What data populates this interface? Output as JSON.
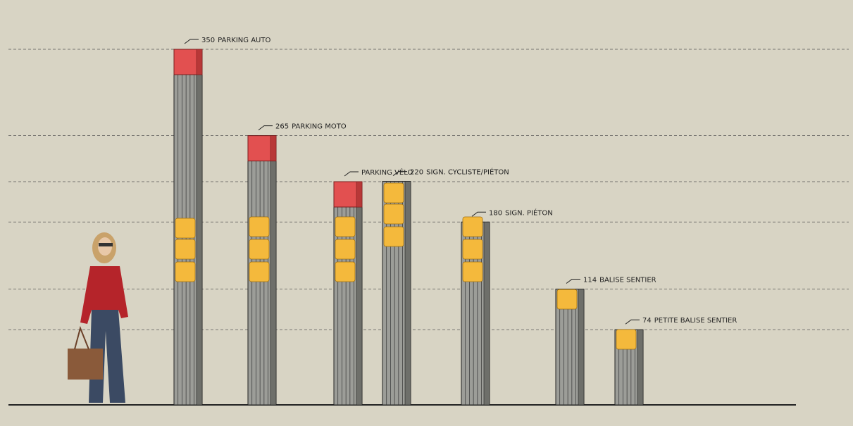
{
  "posts": [
    {
      "height": 350,
      "label": "PARKING AUTO"
    },
    {
      "height": 265,
      "label": "PARKING MOTO"
    },
    {
      "label": "PARKING VÉLO"
    },
    {
      "height": 220,
      "label": "SIGN. CYCLISTE/PIÉTON"
    },
    {
      "height": 180,
      "label": "SIGN. PIÉTON"
    },
    {
      "height": 114,
      "label": "BALISE SENTIER"
    },
    {
      "height": 74,
      "label": "PETITE BALISE SENTIER"
    }
  ]
}
